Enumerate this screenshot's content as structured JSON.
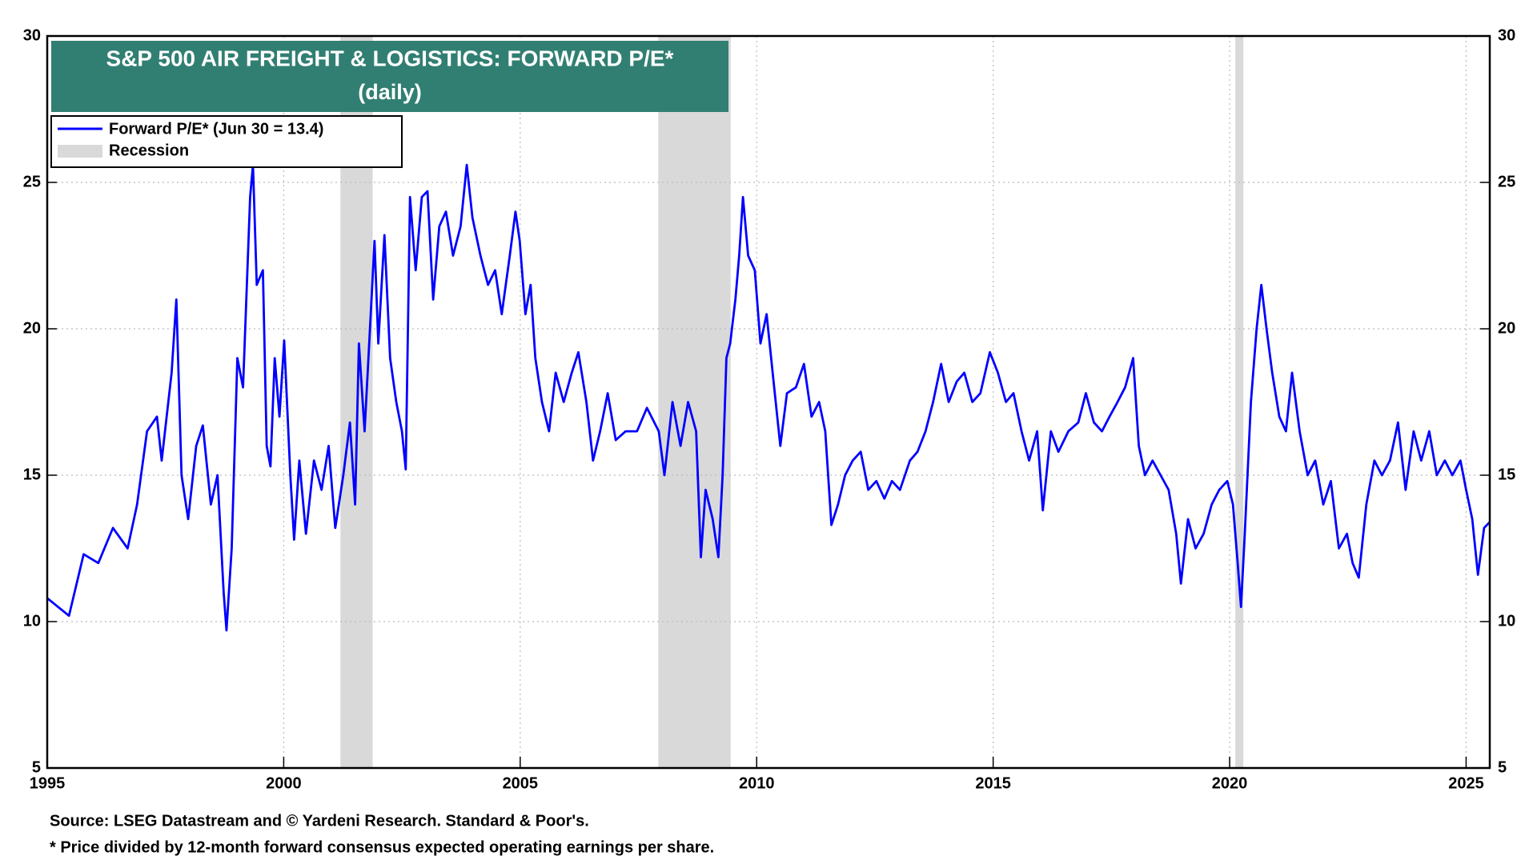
{
  "chart_data": {
    "type": "line",
    "title": "S&P 500 AIR FREIGHT & LOGISTICS: FORWARD P/E*",
    "subtitle": "(daily)",
    "source": "Source: LSEG Datastream and © Yardeni Research. Standard & Poor's.",
    "note": "* Price divided by 12-month forward consensus expected operating earnings per share.",
    "xlim": [
      1995,
      2025.5
    ],
    "xticks": [
      1995,
      2000,
      2005,
      2010,
      2015,
      2020,
      2025
    ],
    "ylim": [
      5,
      30
    ],
    "yticks": [
      5,
      10,
      15,
      20,
      25,
      30
    ],
    "y2lim": [
      5,
      30
    ],
    "y2ticks": [
      5,
      10,
      15,
      20,
      25,
      30
    ],
    "grid": true,
    "legend": "upper left",
    "recession": {
      "name": "Recession",
      "color": "#d9d9d9"
    },
    "recessions": [
      {
        "start": 2001.2,
        "end": 2001.88
      },
      {
        "start": 2007.92,
        "end": 2009.45
      },
      {
        "start": 2020.12,
        "end": 2020.29
      }
    ],
    "x": [
      1995.0,
      1995.46,
      1995.77,
      1996.08,
      1996.39,
      1996.7,
      1996.9,
      1997.11,
      1997.32,
      1997.42,
      1997.63,
      1997.73,
      1997.84,
      1997.98,
      1998.15,
      1998.29,
      1998.46,
      1998.6,
      1998.73,
      1998.79,
      1998.9,
      1999.02,
      1999.14,
      1999.29,
      1999.35,
      1999.43,
      1999.56,
      1999.64,
      1999.72,
      1999.81,
      1999.91,
      2000.01,
      2000.14,
      2000.22,
      2000.33,
      2000.47,
      2000.64,
      2000.8,
      2000.95,
      2001.09,
      2001.26,
      2001.4,
      2001.51,
      2001.59,
      2001.71,
      2001.84,
      2001.92,
      2002.0,
      2002.13,
      2002.25,
      2002.38,
      2002.5,
      2002.58,
      2002.67,
      2002.79,
      2002.92,
      2003.04,
      2003.16,
      2003.29,
      2003.43,
      2003.58,
      2003.74,
      2003.87,
      2003.99,
      2004.16,
      2004.32,
      2004.47,
      2004.61,
      2004.78,
      2004.9,
      2004.99,
      2005.11,
      2005.22,
      2005.32,
      2005.46,
      2005.61,
      2005.75,
      2005.92,
      2006.09,
      2006.23,
      2006.4,
      2006.54,
      2006.69,
      2006.85,
      2007.02,
      2007.23,
      2007.47,
      2007.68,
      2007.93,
      2008.05,
      2008.22,
      2008.39,
      2008.55,
      2008.72,
      2008.82,
      2008.92,
      2009.07,
      2009.19,
      2009.28,
      2009.36,
      2009.44,
      2009.55,
      2009.63,
      2009.71,
      2009.82,
      2009.96,
      2010.08,
      2010.21,
      2010.37,
      2010.5,
      2010.64,
      2010.83,
      2011.0,
      2011.16,
      2011.32,
      2011.45,
      2011.58,
      2011.72,
      2011.87,
      2012.03,
      2012.2,
      2012.36,
      2012.53,
      2012.7,
      2012.86,
      2013.03,
      2013.24,
      2013.4,
      2013.57,
      2013.73,
      2013.9,
      2014.06,
      2014.23,
      2014.39,
      2014.56,
      2014.73,
      2014.93,
      2015.1,
      2015.27,
      2015.43,
      2015.6,
      2015.76,
      2015.93,
      2016.05,
      2016.22,
      2016.38,
      2016.59,
      2016.8,
      2016.96,
      2017.13,
      2017.3,
      2017.46,
      2017.63,
      2017.79,
      2017.96,
      2018.08,
      2018.21,
      2018.37,
      2018.54,
      2018.71,
      2018.87,
      2018.97,
      2019.12,
      2019.28,
      2019.45,
      2019.62,
      2019.78,
      2019.95,
      2020.07,
      2020.17,
      2020.24,
      2020.32,
      2020.45,
      2020.57,
      2020.67,
      2020.78,
      2020.9,
      2021.05,
      2021.19,
      2021.32,
      2021.48,
      2021.65,
      2021.81,
      2021.98,
      2022.14,
      2022.31,
      2022.48,
      2022.6,
      2022.73,
      2022.89,
      2023.06,
      2023.22,
      2023.39,
      2023.56,
      2023.72,
      2023.89,
      2024.05,
      2024.22,
      2024.38,
      2024.55,
      2024.71,
      2024.88,
      2025.0,
      2025.13,
      2025.25,
      2025.38,
      2025.5
    ],
    "series": [
      {
        "name": "Forward P/E* (Jun 30 = 13.4)",
        "color": "#0000ff",
        "values": [
          10.8,
          10.2,
          12.3,
          12.0,
          13.2,
          12.5,
          14.0,
          16.5,
          17.0,
          15.5,
          18.5,
          21.0,
          15.0,
          13.5,
          16.0,
          16.7,
          14.0,
          15.0,
          11.0,
          9.7,
          12.5,
          19.0,
          18.0,
          24.5,
          25.6,
          21.5,
          22.0,
          16.0,
          15.3,
          19.0,
          17.0,
          19.6,
          15.0,
          12.8,
          15.5,
          13.0,
          15.5,
          14.5,
          16.0,
          13.2,
          15.0,
          16.8,
          14.0,
          19.5,
          16.5,
          20.5,
          23.0,
          19.5,
          23.2,
          19.0,
          17.5,
          16.5,
          15.2,
          24.5,
          22.0,
          24.5,
          24.7,
          21.0,
          23.5,
          24.0,
          22.5,
          23.5,
          25.6,
          23.8,
          22.5,
          21.5,
          22.0,
          20.5,
          22.5,
          24.0,
          23.0,
          20.5,
          21.5,
          19.0,
          17.5,
          16.5,
          18.5,
          17.5,
          18.5,
          19.2,
          17.5,
          15.5,
          16.5,
          17.8,
          16.2,
          16.5,
          16.5,
          17.3,
          16.5,
          15.0,
          17.5,
          16.0,
          17.5,
          16.5,
          12.2,
          14.5,
          13.5,
          12.2,
          15.0,
          19.0,
          19.5,
          21.0,
          22.5,
          24.5,
          22.5,
          22.0,
          19.5,
          20.5,
          18.0,
          16.0,
          17.8,
          18.0,
          18.8,
          17.0,
          17.5,
          16.5,
          13.3,
          14.0,
          15.0,
          15.5,
          15.8,
          14.5,
          14.8,
          14.2,
          14.8,
          14.5,
          15.5,
          15.8,
          16.5,
          17.5,
          18.8,
          17.5,
          18.2,
          18.5,
          17.5,
          17.8,
          19.2,
          18.5,
          17.5,
          17.8,
          16.5,
          15.5,
          16.5,
          13.8,
          16.5,
          15.8,
          16.5,
          16.8,
          17.8,
          16.8,
          16.5,
          17.0,
          17.5,
          18.0,
          19.0,
          16.0,
          15.0,
          15.5,
          15.0,
          14.5,
          13.0,
          11.3,
          13.5,
          12.5,
          13.0,
          14.0,
          14.5,
          14.8,
          14.0,
          12.0,
          10.5,
          13.0,
          17.5,
          20.0,
          21.5,
          20.0,
          18.5,
          17.0,
          16.5,
          18.5,
          16.5,
          15.0,
          15.5,
          14.0,
          14.8,
          12.5,
          13.0,
          12.0,
          11.5,
          14.0,
          15.5,
          15.0,
          15.5,
          16.8,
          14.5,
          16.5,
          15.5,
          16.5,
          15.0,
          15.5,
          15.0,
          15.5,
          14.5,
          13.5,
          11.6,
          13.2,
          13.4
        ]
      }
    ]
  }
}
